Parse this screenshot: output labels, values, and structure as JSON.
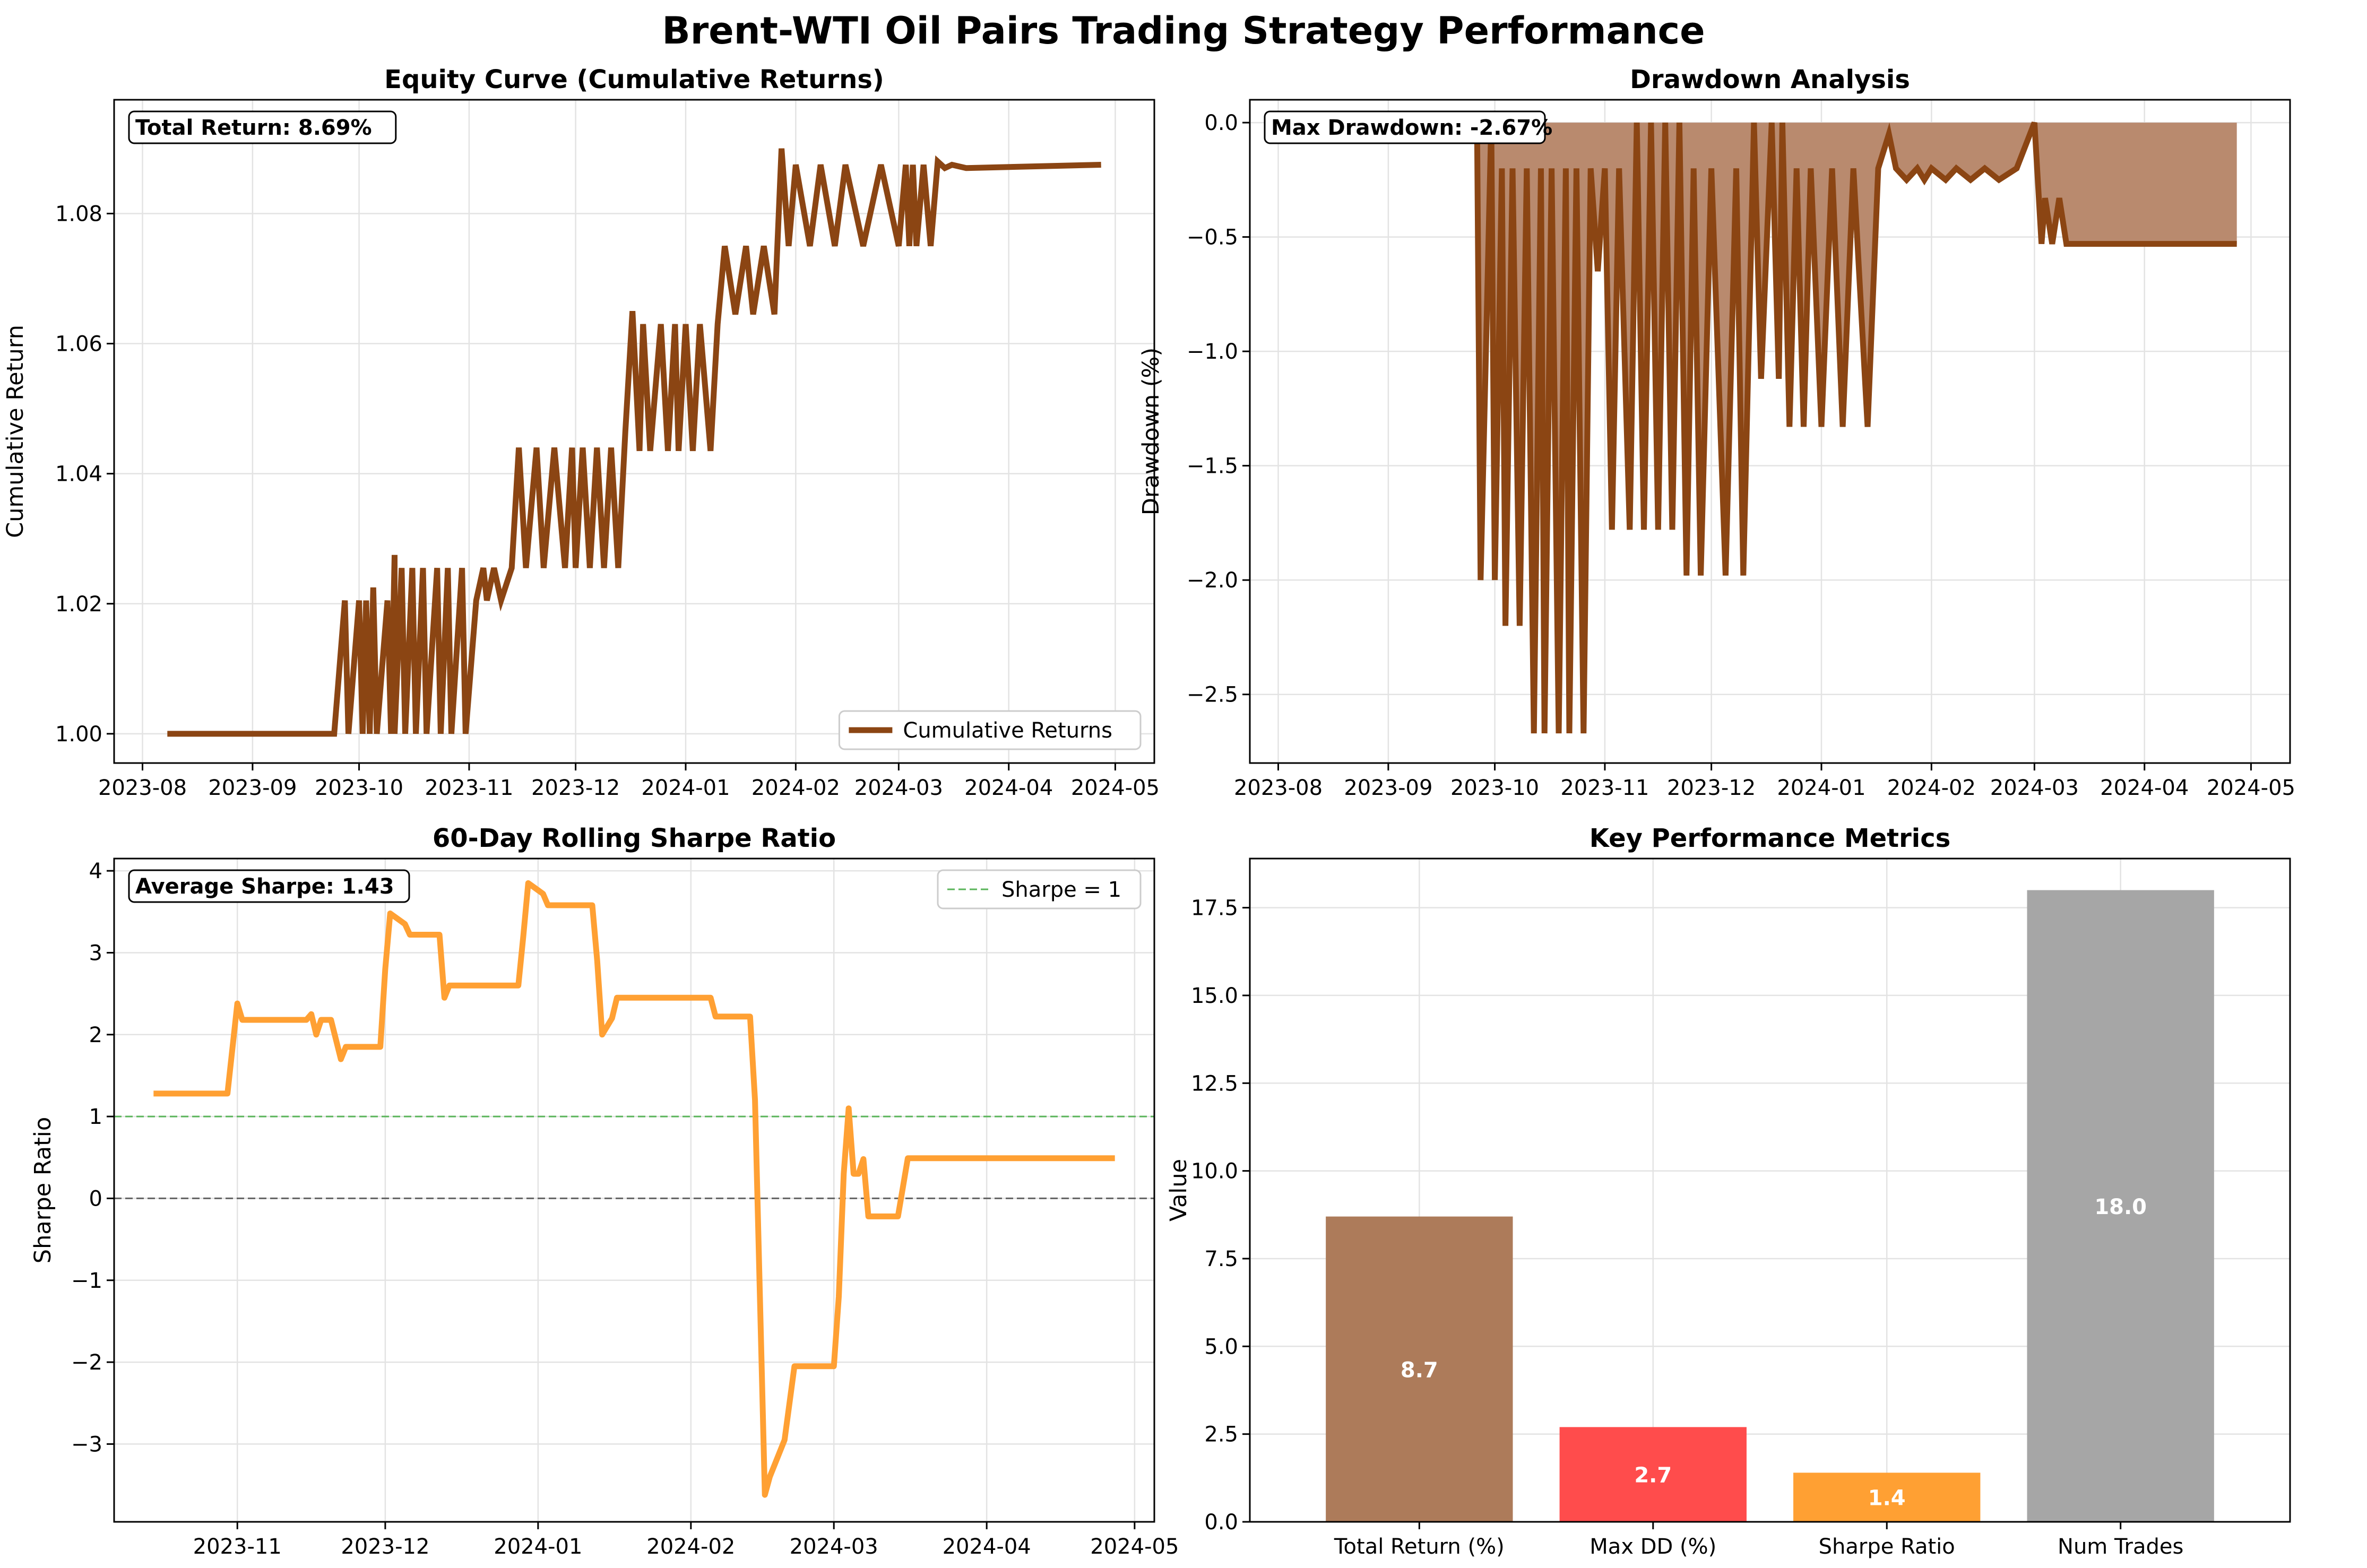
{
  "suptitle": "Brent-WTI Oil Pairs Trading Strategy Performance",
  "colors": {
    "brown": "#8B4513",
    "brown_fill": "#B98A6E",
    "orange": "#FFA033",
    "green_dash": "#5AB45A",
    "red": "#FF4C4C",
    "gray": "#A6A6A6",
    "bar_brown": "#AD7B5A"
  },
  "chart_data": [
    {
      "id": "equity",
      "type": "line",
      "title": "Equity Curve (Cumulative Returns)",
      "xlabel": "",
      "ylabel": "Cumulative Return",
      "xticks": [
        "2023-08",
        "2023-09",
        "2023-10",
        "2023-11",
        "2023-12",
        "2024-01",
        "2024-02",
        "2024-03",
        "2024-04",
        "2024-05"
      ],
      "xlim": [
        "2023-07-24",
        "2024-05-12"
      ],
      "ylim": [
        0.9955,
        1.0975
      ],
      "yticks": [
        1.0,
        1.02,
        1.04,
        1.06,
        1.08
      ],
      "ytick_labels": [
        "1.00",
        "1.02",
        "1.04",
        "1.06",
        "1.08"
      ],
      "grid": true,
      "annotation": "Total Return: 8.69%",
      "legend": {
        "position": "lower-right",
        "entries": [
          "Cumulative Returns"
        ]
      },
      "series": [
        {
          "name": "Cumulative Returns",
          "x": [
            "2023-08-08",
            "2023-09-24",
            "2023-09-27",
            "2023-09-28",
            "2023-10-01",
            "2023-10-02",
            "2023-10-03",
            "2023-10-04",
            "2023-10-05",
            "2023-10-06",
            "2023-10-09",
            "2023-10-10",
            "2023-10-11",
            "2023-10-11",
            "2023-10-13",
            "2023-10-14",
            "2023-10-16",
            "2023-10-17",
            "2023-10-19",
            "2023-10-20",
            "2023-10-23",
            "2023-10-24",
            "2023-10-26",
            "2023-10-27",
            "2023-10-30",
            "2023-10-31",
            "2023-11-03",
            "2023-11-05",
            "2023-11-06",
            "2023-11-08",
            "2023-11-10",
            "2023-11-13",
            "2023-11-15",
            "2023-11-17",
            "2023-11-20",
            "2023-11-22",
            "2023-11-25",
            "2023-11-28",
            "2023-11-30",
            "2023-12-01",
            "2023-12-03",
            "2023-12-05",
            "2023-12-07",
            "2023-12-09",
            "2023-12-11",
            "2023-12-13",
            "2023-12-15",
            "2023-12-17",
            "2023-12-19",
            "2023-12-20",
            "2023-12-22",
            "2023-12-25",
            "2023-12-27",
            "2023-12-29",
            "2023-12-30",
            "2024-01-01",
            "2024-01-03",
            "2024-01-05",
            "2024-01-08",
            "2024-01-10",
            "2024-01-12",
            "2024-01-15",
            "2024-01-18",
            "2024-01-20",
            "2024-01-23",
            "2024-01-26",
            "2024-01-28",
            "2024-01-30",
            "2024-02-01",
            "2024-02-05",
            "2024-02-08",
            "2024-02-12",
            "2024-02-15",
            "2024-02-20",
            "2024-02-25",
            "2024-03-01",
            "2024-03-03",
            "2024-03-04",
            "2024-03-05",
            "2024-03-06",
            "2024-03-08",
            "2024-03-10",
            "2024-03-12",
            "2024-03-14",
            "2024-03-16",
            "2024-03-20",
            "2024-04-27"
          ],
          "values": [
            1.0,
            1.0,
            1.0205,
            1.0,
            1.0205,
            1.0,
            1.0205,
            1.0,
            1.0225,
            1.0,
            1.0205,
            1.0,
            1.0275,
            1.0,
            1.0255,
            1.0,
            1.0255,
            1.0,
            1.0255,
            1.0,
            1.0255,
            1.0,
            1.0255,
            1.0,
            1.0255,
            1.0,
            1.0205,
            1.0255,
            1.0205,
            1.0255,
            1.0205,
            1.0255,
            1.044,
            1.0255,
            1.044,
            1.0255,
            1.044,
            1.0255,
            1.044,
            1.0255,
            1.044,
            1.0255,
            1.044,
            1.0255,
            1.044,
            1.0255,
            1.0465,
            1.065,
            1.0435,
            1.063,
            1.0435,
            1.063,
            1.0435,
            1.063,
            1.0435,
            1.063,
            1.0435,
            1.063,
            1.0435,
            1.063,
            1.075,
            1.0645,
            1.075,
            1.0645,
            1.075,
            1.0645,
            1.09,
            1.075,
            1.0875,
            1.075,
            1.0875,
            1.075,
            1.0875,
            1.075,
            1.0875,
            1.075,
            1.0875,
            1.075,
            1.0875,
            1.075,
            1.0875,
            1.075,
            1.088,
            1.087,
            1.0875,
            1.087,
            1.0875
          ]
        }
      ]
    },
    {
      "id": "drawdown",
      "type": "area",
      "title": "Drawdown Analysis",
      "xlabel": "",
      "ylabel": "Drawdown (%)",
      "xticks": [
        "2023-08",
        "2023-09",
        "2023-10",
        "2023-11",
        "2023-12",
        "2024-01",
        "2024-02",
        "2024-03",
        "2024-04",
        "2024-05"
      ],
      "xlim": [
        "2023-07-24",
        "2024-05-12"
      ],
      "ylim": [
        -2.8,
        0.1
      ],
      "yticks": [
        0.0,
        -0.5,
        -1.0,
        -1.5,
        -2.0,
        -2.5
      ],
      "ytick_labels": [
        "0.0",
        "−0.5",
        "−1.0",
        "−1.5",
        "−2.0",
        "−2.5"
      ],
      "grid": true,
      "annotation": "Max Drawdown: -2.67%",
      "series": [
        {
          "name": "",
          "x": [
            "2023-09-26",
            "2023-09-27",
            "2023-09-30",
            "2023-10-01",
            "2023-10-03",
            "2023-10-04",
            "2023-10-06",
            "2023-10-08",
            "2023-10-10",
            "2023-10-12",
            "2023-10-14",
            "2023-10-15",
            "2023-10-17",
            "2023-10-19",
            "2023-10-21",
            "2023-10-22",
            "2023-10-24",
            "2023-10-26",
            "2023-10-28",
            "2023-10-30",
            "2023-11-01",
            "2023-11-03",
            "2023-11-05",
            "2023-11-08",
            "2023-11-10",
            "2023-11-12",
            "2023-11-14",
            "2023-11-16",
            "2023-11-18",
            "2023-11-20",
            "2023-11-22",
            "2023-11-24",
            "2023-11-26",
            "2023-11-28",
            "2023-12-01",
            "2023-12-05",
            "2023-12-08",
            "2023-12-10",
            "2023-12-13",
            "2023-12-15",
            "2023-12-18",
            "2023-12-20",
            "2023-12-21",
            "2023-12-23",
            "2023-12-25",
            "2023-12-27",
            "2023-12-29",
            "2024-01-01",
            "2024-01-04",
            "2024-01-07",
            "2024-01-10",
            "2024-01-14",
            "2024-01-17",
            "2024-01-20",
            "2024-01-22",
            "2024-01-25",
            "2024-01-28",
            "2024-01-30",
            "2024-02-01",
            "2024-02-05",
            "2024-02-08",
            "2024-02-12",
            "2024-02-16",
            "2024-02-20",
            "2024-02-25",
            "2024-03-01",
            "2024-03-03",
            "2024-03-04",
            "2024-03-06",
            "2024-03-08",
            "2024-03-10",
            "2024-03-12",
            "2024-03-14",
            "2024-04-27"
          ],
          "values": [
            0.0,
            -2.0,
            0.0,
            -2.0,
            -0.2,
            -2.2,
            -0.2,
            -2.2,
            -0.2,
            -2.67,
            -0.2,
            -2.67,
            -0.2,
            -2.67,
            -0.2,
            -2.67,
            -0.2,
            -2.67,
            -0.2,
            -0.65,
            -0.2,
            -1.78,
            -0.2,
            -1.78,
            0.0,
            -1.78,
            0.0,
            -1.78,
            0.0,
            -1.78,
            0.0,
            -1.98,
            -0.2,
            -1.98,
            -0.2,
            -1.98,
            -0.2,
            -1.98,
            0.0,
            -1.12,
            0.0,
            -1.12,
            0.0,
            -1.33,
            -0.2,
            -1.33,
            -0.2,
            -1.33,
            -0.2,
            -1.33,
            -0.2,
            -1.33,
            -0.2,
            -0.05,
            -0.2,
            -0.25,
            -0.2,
            -0.25,
            -0.2,
            -0.25,
            -0.2,
            -0.25,
            -0.2,
            -0.25,
            -0.2,
            0.0,
            -0.53,
            -0.33,
            -0.53,
            -0.33,
            -0.53,
            -0.53,
            -0.53,
            -0.53
          ]
        }
      ]
    },
    {
      "id": "sharpe",
      "type": "line",
      "title": "60-Day Rolling Sharpe Ratio",
      "xlabel": "",
      "ylabel": "Sharpe Ratio",
      "xticks": [
        "2023-11",
        "2023-12",
        "2024-01",
        "2024-02",
        "2024-03",
        "2024-04",
        "2024-05"
      ],
      "xlim": [
        "2023-10-07",
        "2024-05-05"
      ],
      "ylim": [
        -3.95,
        4.15
      ],
      "yticks": [
        4,
        3,
        2,
        1,
        0,
        -1,
        -2,
        -3
      ],
      "ytick_labels": [
        "4",
        "3",
        "2",
        "1",
        "0",
        "−1",
        "−2",
        "−3"
      ],
      "grid": true,
      "annotation": "Average Sharpe: 1.43",
      "legend": {
        "position": "upper-right",
        "entries": [
          "Sharpe = 1"
        ]
      },
      "reference_lines": [
        {
          "y": 1,
          "label": "Sharpe = 1",
          "style": "dashed",
          "color": "green"
        },
        {
          "y": 0,
          "label": "",
          "style": "dashed",
          "color": "gray"
        }
      ],
      "series": [
        {
          "name": "",
          "x": [
            "2023-10-15",
            "2023-10-30",
            "2023-11-01",
            "2023-11-02",
            "2023-11-15",
            "2023-11-16",
            "2023-11-17",
            "2023-11-18",
            "2023-11-20",
            "2023-11-22",
            "2023-11-23",
            "2023-11-24",
            "2023-11-30",
            "2023-12-01",
            "2023-12-02",
            "2023-12-05",
            "2023-12-06",
            "2023-12-12",
            "2023-12-13",
            "2023-12-14",
            "2023-12-28",
            "2023-12-29",
            "2023-12-30",
            "2024-01-02",
            "2024-01-03",
            "2024-01-12",
            "2024-01-13",
            "2024-01-14",
            "2024-01-16",
            "2024-01-17",
            "2024-02-05",
            "2024-02-06",
            "2024-02-13",
            "2024-02-14",
            "2024-02-16",
            "2024-02-17",
            "2024-02-20",
            "2024-02-22",
            "2024-03-01",
            "2024-03-02",
            "2024-03-03",
            "2024-03-04",
            "2024-03-05",
            "2024-03-06",
            "2024-03-07",
            "2024-03-08",
            "2024-03-09",
            "2024-03-14",
            "2024-03-16",
            "2024-04-27"
          ],
          "values": [
            1.28,
            1.28,
            2.38,
            2.18,
            2.18,
            2.25,
            2.0,
            2.18,
            2.18,
            1.7,
            1.85,
            1.85,
            1.85,
            2.8,
            3.48,
            3.35,
            3.22,
            3.22,
            2.45,
            2.6,
            2.6,
            3.2,
            3.85,
            3.72,
            3.58,
            3.58,
            2.9,
            2.0,
            2.2,
            2.45,
            2.45,
            2.22,
            2.22,
            1.2,
            -3.62,
            -3.4,
            -2.95,
            -2.05,
            -2.05,
            -1.2,
            0.3,
            1.1,
            0.3,
            0.3,
            0.48,
            -0.22,
            -0.22,
            -0.22,
            0.49,
            0.49
          ]
        }
      ]
    },
    {
      "id": "metrics",
      "type": "bar",
      "title": "Key Performance Metrics",
      "xlabel": "",
      "ylabel": "Value",
      "categories": [
        "Total Return (%)",
        "Max DD (%)",
        "Sharpe Ratio",
        "Num Trades"
      ],
      "values": [
        8.7,
        2.7,
        1.4,
        18.0
      ],
      "value_labels": [
        "8.7",
        "2.7",
        "1.4",
        "18.0"
      ],
      "ylim": [
        0,
        18.9
      ],
      "yticks": [
        0.0,
        2.5,
        5.0,
        7.5,
        10.0,
        12.5,
        15.0,
        17.5
      ],
      "ytick_labels": [
        "0.0",
        "2.5",
        "5.0",
        "7.5",
        "10.0",
        "12.5",
        "15.0",
        "17.5"
      ],
      "grid": true
    }
  ]
}
